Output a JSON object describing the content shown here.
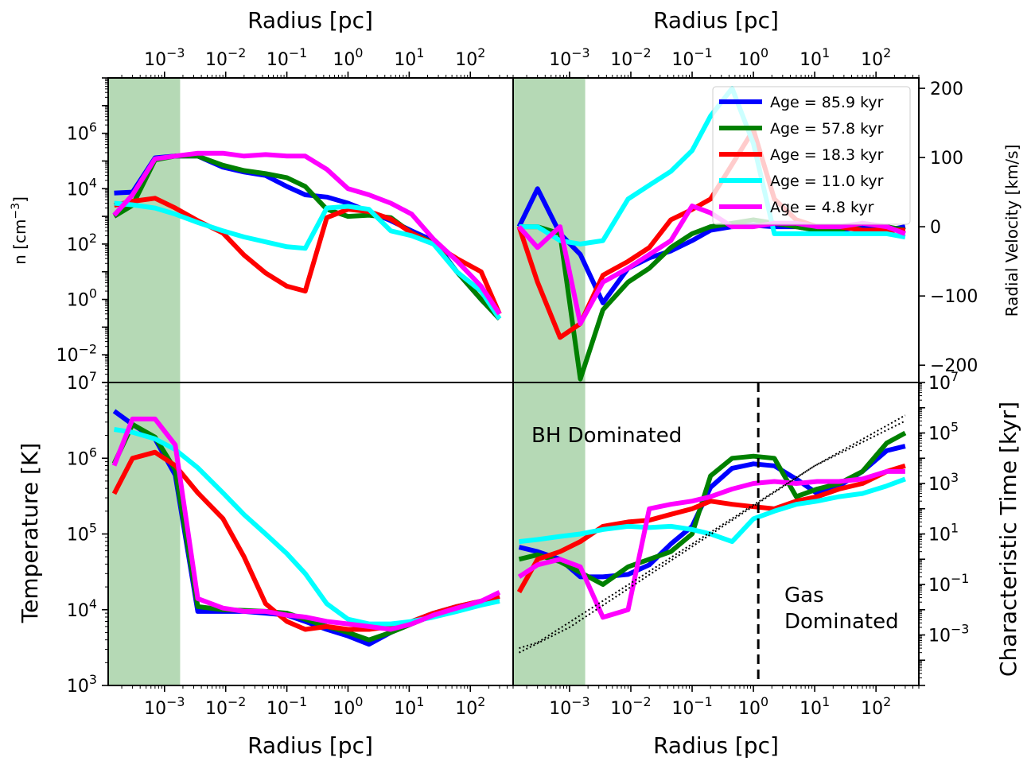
{
  "figure": {
    "top_xlabel": "Radius [pc]",
    "bottom_xlabel": "Radius [pc]",
    "x_ticks": [
      "10",
      "10",
      "10",
      "10",
      "10",
      "10"
    ],
    "x_tick_exponents": [
      "−3",
      "−2",
      "−1",
      "0",
      "1",
      "2"
    ],
    "x_tick_values": [
      0.001,
      0.01,
      0.1,
      1,
      10,
      100
    ],
    "xlim": [
      0.00012,
      500
    ]
  },
  "colors": {
    "shade": "#b5d9b5",
    "Age = 85.9 kyr": "#0000ff",
    "Age = 57.8 kyr": "#008000",
    "Age = 18.3 kyr": "#ff0000",
    "Age = 11.0 kyr": "#00ffff",
    "Age = 4.8 kyr": "#ff00ff"
  },
  "legend": {
    "placement": "top-right of upper-right panel",
    "entries": [
      "Age = 85.9 kyr",
      "Age = 57.8 kyr",
      "Age = 18.3 kyr",
      "Age = 11.0 kyr",
      "Age = 4.8 kyr"
    ]
  },
  "annotations": {
    "bh": "BH Dominated",
    "gas1": "Gas",
    "gas2": "Dominated"
  },
  "chart_data": [
    {
      "type": "line",
      "panel": "density",
      "ylabel": "n [cm",
      "ylabel_sup": "−3",
      "ylabel_end": "]",
      "yscale": "log",
      "ylim": [
        0.001,
        100000000.0
      ],
      "y_ticks": [
        0.01,
        1,
        100,
        10000,
        1000000
      ],
      "y_tick_exponents": [
        "−2",
        "0",
        "2",
        "4",
        "6"
      ],
      "shaded_x_range": [
        0.00012,
        0.0018
      ],
      "x": [
        0.00015,
        0.0003,
        0.0007,
        0.0015,
        0.0035,
        0.009,
        0.02,
        0.045,
        0.1,
        0.2,
        0.45,
        1.0,
        2.2,
        5,
        11,
        25,
        60,
        150,
        300
      ],
      "series": [
        {
          "name": "Age = 85.9 kyr",
          "values": [
            7000,
            7500,
            130000,
            150000,
            150000,
            60000,
            40000,
            30000,
            12000,
            6000,
            5000,
            3000,
            1500,
            700,
            300,
            130,
            10,
            1,
            0.2
          ]
        },
        {
          "name": "Age = 57.8 kyr",
          "values": [
            1000,
            2500,
            110000,
            150000,
            150000,
            70000,
            45000,
            35000,
            25000,
            12000,
            1800,
            1000,
            1100,
            900,
            250,
            110,
            10,
            1,
            0.2
          ]
        },
        {
          "name": "Age = 18.3 kyr",
          "values": [
            2500,
            3500,
            4500,
            2000,
            700,
            250,
            40,
            9,
            3,
            2,
            900,
            1800,
            1500,
            800,
            250,
            100,
            30,
            10,
            0.3
          ]
        },
        {
          "name": "Age = 11.0 kyr",
          "values": [
            3000,
            2600,
            2000,
            1200,
            600,
            300,
            180,
            120,
            80,
            70,
            2000,
            2300,
            1800,
            300,
            200,
            100,
            10,
            2,
            0.2
          ]
        },
        {
          "name": "Age = 4.8 kyr",
          "values": [
            1100,
            6000,
            120000,
            150000,
            190000,
            190000,
            150000,
            170000,
            150000,
            150000,
            50000,
            10000,
            6000,
            3000,
            1200,
            150,
            25,
            3,
            0.3
          ]
        }
      ]
    },
    {
      "type": "line",
      "panel": "radial velocity",
      "ylabel": "Radial Velocity [km/s]",
      "ylim": [
        -225,
        215
      ],
      "y_ticks": [
        -200,
        -100,
        0,
        100,
        200
      ],
      "y_tick_labels": [
        "−200",
        "−100",
        "0",
        "100",
        "200"
      ],
      "shaded_x_range": [
        0.00012,
        0.0018
      ],
      "x": [
        0.00015,
        0.0003,
        0.0007,
        0.0015,
        0.0035,
        0.009,
        0.02,
        0.045,
        0.1,
        0.2,
        0.45,
        1.0,
        2.2,
        5,
        11,
        25,
        60,
        150,
        300
      ],
      "series": [
        {
          "name": "Age = 85.9 kyr",
          "values": [
            0,
            55,
            -10,
            -40,
            -110,
            -60,
            -45,
            -35,
            -20,
            -5,
            0,
            2,
            0,
            0,
            -5,
            -5,
            0,
            -5,
            0
          ]
        },
        {
          "name": "Age = 57.8 kyr",
          "values": [
            0,
            0,
            -10,
            -220,
            -120,
            -80,
            -60,
            -30,
            -10,
            0,
            5,
            10,
            5,
            0,
            -5,
            -5,
            5,
            0,
            -5
          ]
        },
        {
          "name": "Age = 18.3 kyr",
          "values": [
            0,
            -80,
            -160,
            -140,
            -70,
            -50,
            -30,
            10,
            25,
            40,
            90,
            140,
            40,
            10,
            0,
            0,
            -5,
            -5,
            -5
          ]
        },
        {
          "name": "Age = 11.0 kyr",
          "values": [
            0,
            0,
            -20,
            -25,
            -20,
            40,
            60,
            80,
            110,
            160,
            200,
            120,
            -10,
            -10,
            -10,
            -10,
            -10,
            -10,
            -15
          ]
        },
        {
          "name": "Age = 4.8 kyr",
          "values": [
            0,
            -30,
            0,
            -140,
            -80,
            -60,
            -40,
            -20,
            30,
            20,
            0,
            0,
            5,
            5,
            0,
            0,
            5,
            0,
            -10
          ]
        }
      ]
    },
    {
      "type": "line",
      "panel": "temperature",
      "ylabel": "Temperature [K]",
      "yscale": "log",
      "ylim": [
        1000,
        10000000
      ],
      "y_ticks": [
        1000,
        10000,
        100000,
        1000000,
        10000000
      ],
      "y_tick_exponents": [
        "3",
        "4",
        "5",
        "6",
        "7"
      ],
      "shaded_x_range": [
        0.00012,
        0.0018
      ],
      "x": [
        0.00015,
        0.0003,
        0.0007,
        0.0015,
        0.0035,
        0.009,
        0.02,
        0.045,
        0.1,
        0.2,
        0.45,
        1.0,
        2.2,
        5,
        11,
        25,
        60,
        150,
        300
      ],
      "series": [
        {
          "name": "Age = 85.9 kyr",
          "values": [
            4200000,
            2800000,
            1800000,
            600000,
            9500,
            9500,
            9500,
            9000,
            8500,
            7000,
            5500,
            4500,
            3500,
            5000,
            7000,
            9000,
            11000,
            13000,
            15000
          ]
        },
        {
          "name": "Age = 57.8 kyr",
          "values": [
            850000,
            2800000,
            1900000,
            700000,
            11000,
            10000,
            9800,
            9500,
            9000,
            7500,
            6000,
            5000,
            4000,
            5000,
            6500,
            8500,
            10500,
            12000,
            13000
          ]
        },
        {
          "name": "Age = 18.3 kyr",
          "values": [
            340000,
            1000000,
            1200000,
            800000,
            350000,
            160000,
            50000,
            12000,
            7000,
            5500,
            6000,
            5500,
            5500,
            6000,
            7000,
            9000,
            11000,
            13000,
            15000
          ]
        },
        {
          "name": "Age = 11.0 kyr",
          "values": [
            2400000,
            2200000,
            1800000,
            1300000,
            750000,
            350000,
            180000,
            100000,
            55000,
            30000,
            12000,
            7500,
            6500,
            6500,
            7000,
            8000,
            9500,
            11500,
            13000
          ]
        },
        {
          "name": "Age = 4.8 kyr",
          "values": [
            800000,
            3300000,
            3300000,
            1500000,
            14000,
            10500,
            9500,
            9500,
            8500,
            8000,
            7000,
            6500,
            6000,
            5500,
            6500,
            8500,
            10500,
            13000,
            17000
          ]
        }
      ]
    },
    {
      "type": "line",
      "panel": "characteristic time",
      "ylabel": "Characteristic Time [kyr]",
      "yscale": "log",
      "ylim": [
        1e-05,
        10000000
      ],
      "y_ticks": [
        0.001,
        0.1,
        10,
        1000,
        100000,
        10000000
      ],
      "y_tick_exponents": [
        "−3",
        "−1",
        "1",
        "3",
        "5",
        "7"
      ],
      "shaded_x_range": [
        0.00012,
        0.0018
      ],
      "vline_x": 1.2,
      "x": [
        0.00015,
        0.0003,
        0.0007,
        0.0015,
        0.0035,
        0.009,
        0.02,
        0.045,
        0.1,
        0.2,
        0.45,
        1.0,
        2.2,
        5,
        11,
        25,
        60,
        150,
        300
      ],
      "series": [
        {
          "name": "Age = 85.9 kyr",
          "values": [
            3,
            2,
            1,
            0.2,
            0.2,
            0.25,
            0.6,
            4,
            20,
            700,
            4000,
            6000,
            5000,
            1500,
            400,
            800,
            3000,
            20000,
            30000
          ]
        },
        {
          "name": "Age = 57.8 kyr",
          "values": [
            1,
            1.5,
            0.8,
            0.3,
            0.1,
            0.5,
            1,
            2,
            10,
            2000,
            10000,
            12000,
            10000,
            300,
            600,
            1000,
            3000,
            40000,
            100000
          ]
        },
        {
          "name": "Age = 18.3 kyr",
          "values": [
            0.05,
            1,
            2,
            5,
            20,
            30,
            35,
            60,
            100,
            200,
            150,
            120,
            100,
            200,
            300,
            600,
            1000,
            3000,
            5000
          ]
        },
        {
          "name": "Age = 11.0 kyr",
          "values": [
            5,
            6,
            8,
            10,
            15,
            20,
            18,
            20,
            15,
            10,
            5,
            40,
            80,
            150,
            200,
            300,
            400,
            800,
            1500
          ]
        },
        {
          "name": "Age = 4.8 kyr",
          "values": [
            0.2,
            0.6,
            1,
            0.5,
            0.005,
            0.01,
            100,
            150,
            200,
            300,
            600,
            1000,
            1200,
            1000,
            1200,
            1200,
            1500,
            3000,
            3000
          ]
        }
      ],
      "dotted_lines": [
        {
          "x": [
            0.00015,
            0.0003,
            10,
            300
          ],
          "y": [
            0.0003,
            0.0005,
            5000,
            300000
          ]
        },
        {
          "x": [
            0.00015,
            0.001,
            10,
            300
          ],
          "y": [
            0.0002,
            0.002,
            5000,
            500000
          ]
        }
      ]
    }
  ]
}
